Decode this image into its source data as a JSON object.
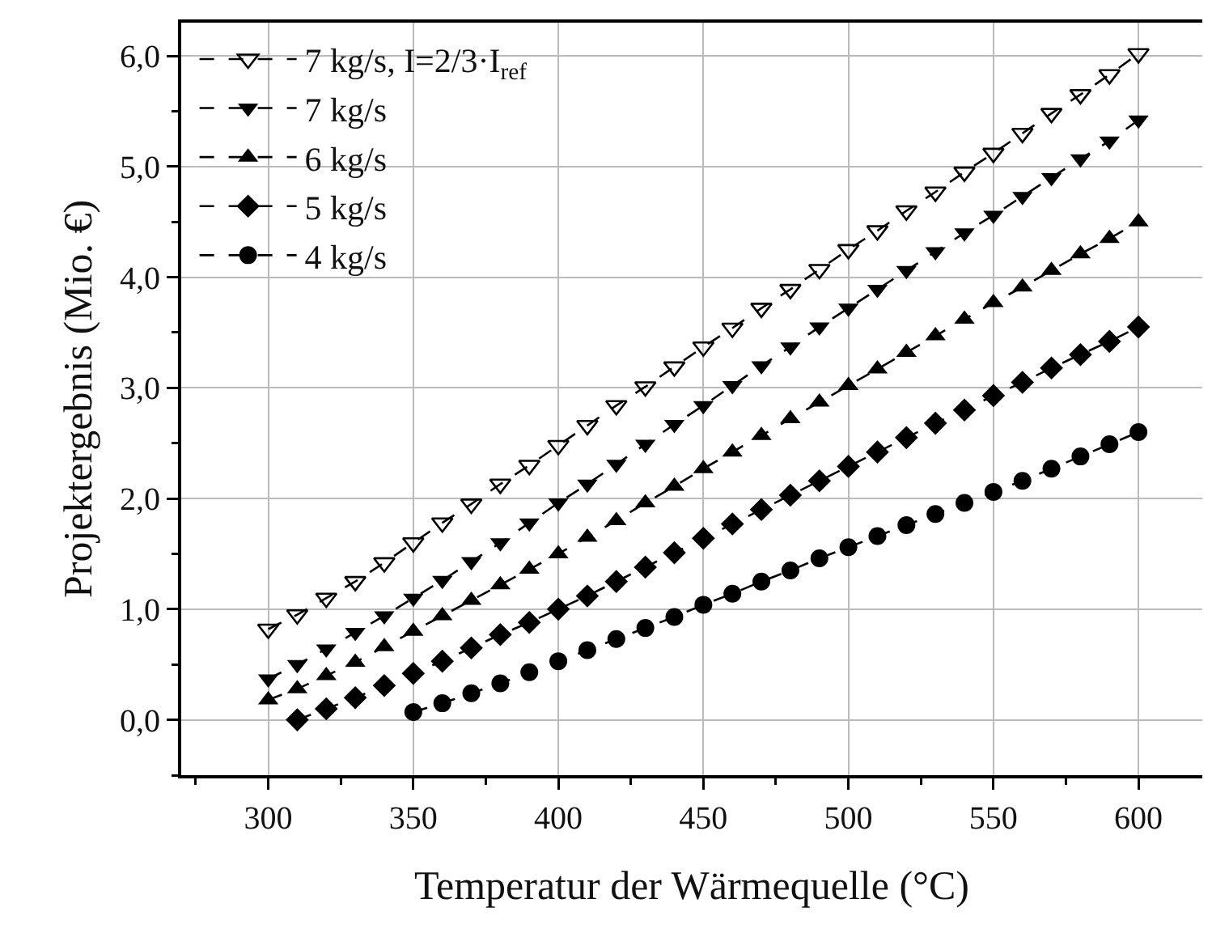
{
  "chart_data": {
    "type": "line",
    "xlabel": "Temperatur der Wärmequelle (°C)",
    "ylabel": "Projektergebnis (Mio. €)",
    "xlim": [
      270,
      622
    ],
    "ylim": [
      -0.5,
      6.3
    ],
    "xticks": [
      300,
      350,
      400,
      450,
      500,
      550,
      600
    ],
    "yticks": [
      {
        "value": 0,
        "label": "0,0"
      },
      {
        "value": 1,
        "label": "1,0"
      },
      {
        "value": 2,
        "label": "2,0"
      },
      {
        "value": 3,
        "label": "3,0"
      },
      {
        "value": 4,
        "label": "4,0"
      },
      {
        "value": 5,
        "label": "5,0"
      },
      {
        "value": 6,
        "label": "6,0"
      }
    ],
    "grid": true,
    "legend": "top left",
    "line_style": "dashed",
    "series": [
      {
        "name": "7 kg/s, I=2/3·I$_{ref}$",
        "color": "#000000",
        "marker": "triangle-down-open",
        "x": [
          300,
          310,
          320,
          330,
          340,
          350,
          360,
          370,
          380,
          390,
          400,
          410,
          420,
          430,
          440,
          450,
          460,
          470,
          480,
          490,
          500,
          510,
          520,
          530,
          540,
          550,
          560,
          570,
          580,
          590,
          600
        ],
        "values": [
          0.82,
          0.95,
          1.1,
          1.25,
          1.42,
          1.6,
          1.78,
          1.95,
          2.13,
          2.3,
          2.48,
          2.66,
          2.84,
          3.01,
          3.19,
          3.37,
          3.54,
          3.72,
          3.89,
          4.07,
          4.25,
          4.42,
          4.6,
          4.77,
          4.95,
          5.12,
          5.3,
          5.48,
          5.65,
          5.83,
          6.02
        ]
      },
      {
        "name": "7 kg/s",
        "color": "#000000",
        "marker": "triangle-down",
        "x": [
          300,
          310,
          320,
          330,
          340,
          350,
          360,
          370,
          380,
          390,
          400,
          410,
          420,
          430,
          440,
          450,
          460,
          470,
          480,
          490,
          500,
          510,
          520,
          530,
          540,
          550,
          560,
          570,
          580,
          590,
          600
        ],
        "values": [
          0.37,
          0.5,
          0.64,
          0.79,
          0.94,
          1.1,
          1.26,
          1.43,
          1.6,
          1.78,
          1.96,
          2.13,
          2.31,
          2.49,
          2.67,
          2.84,
          3.02,
          3.2,
          3.37,
          3.55,
          3.72,
          3.89,
          4.06,
          4.23,
          4.4,
          4.56,
          4.73,
          4.9,
          5.07,
          5.23,
          5.42
        ]
      },
      {
        "name": "6 kg/s",
        "color": "#000000",
        "marker": "triangle",
        "x": [
          300,
          310,
          320,
          330,
          340,
          350,
          360,
          370,
          380,
          390,
          400,
          410,
          420,
          430,
          440,
          450,
          460,
          470,
          480,
          490,
          500,
          510,
          520,
          530,
          540,
          550,
          560,
          570,
          580,
          590,
          600
        ],
        "values": [
          0.18,
          0.28,
          0.4,
          0.52,
          0.66,
          0.8,
          0.94,
          1.08,
          1.22,
          1.36,
          1.5,
          1.65,
          1.8,
          1.96,
          2.11,
          2.27,
          2.42,
          2.57,
          2.72,
          2.87,
          3.02,
          3.17,
          3.32,
          3.47,
          3.62,
          3.77,
          3.91,
          4.06,
          4.21,
          4.35,
          4.5
        ]
      },
      {
        "name": "5 kg/s",
        "color": "#000000",
        "marker": "diamond",
        "x": [
          310,
          320,
          330,
          340,
          350,
          360,
          370,
          380,
          390,
          400,
          410,
          420,
          430,
          440,
          450,
          460,
          470,
          480,
          490,
          500,
          510,
          520,
          530,
          540,
          550,
          560,
          570,
          580,
          590,
          600
        ],
        "values": [
          0.0,
          0.1,
          0.2,
          0.31,
          0.42,
          0.53,
          0.65,
          0.77,
          0.88,
          1.0,
          1.12,
          1.25,
          1.38,
          1.51,
          1.64,
          1.77,
          1.9,
          2.03,
          2.16,
          2.29,
          2.42,
          2.55,
          2.68,
          2.8,
          2.93,
          3.05,
          3.18,
          3.3,
          3.42,
          3.55
        ]
      },
      {
        "name": "4 kg/s",
        "color": "#000000",
        "marker": "circle",
        "x": [
          350,
          360,
          370,
          380,
          390,
          400,
          410,
          420,
          430,
          440,
          450,
          460,
          470,
          480,
          490,
          500,
          510,
          520,
          530,
          540,
          550,
          560,
          570,
          580,
          590,
          600
        ],
        "values": [
          0.07,
          0.15,
          0.24,
          0.33,
          0.43,
          0.53,
          0.63,
          0.73,
          0.83,
          0.93,
          1.04,
          1.14,
          1.25,
          1.35,
          1.46,
          1.56,
          1.66,
          1.76,
          1.86,
          1.96,
          2.06,
          2.16,
          2.27,
          2.38,
          2.49,
          2.6
        ]
      }
    ]
  }
}
